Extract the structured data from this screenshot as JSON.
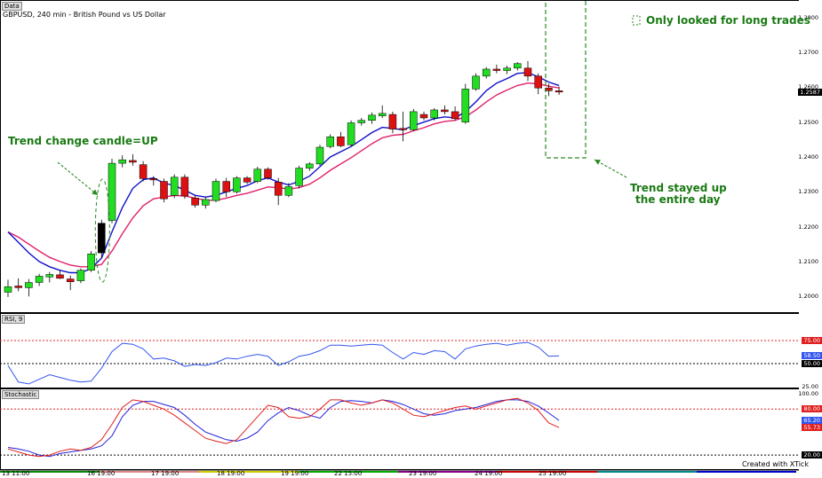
{
  "chart_data": [
    {
      "type": "candlestick",
      "tag": "Data",
      "title": "GBPUSD, 240 min - British Pound vs US Dollar",
      "y_ticks": [
        "1.2800",
        "1.2700",
        "1.2600",
        "1.2500",
        "1.2400",
        "1.2300",
        "1.2200",
        "1.2100",
        "1.2000"
      ],
      "ylim": [
        1.1965,
        1.283
      ],
      "current_price": "1.2587",
      "ohlc": [
        [
          1.2012,
          1.2048,
          1.1998,
          1.2028
        ],
        [
          1.203,
          1.2052,
          1.2015,
          1.2025
        ],
        [
          1.2025,
          1.205,
          1.2,
          1.204
        ],
        [
          1.204,
          1.2065,
          1.203,
          1.2058
        ],
        [
          1.2056,
          1.207,
          1.204,
          1.2063
        ],
        [
          1.2062,
          1.2075,
          1.205,
          1.2052
        ],
        [
          1.205,
          1.206,
          1.2018,
          1.2042
        ],
        [
          1.2045,
          1.208,
          1.2038,
          1.2075
        ],
        [
          1.2075,
          1.213,
          1.207,
          1.2122
        ],
        [
          1.221,
          1.222,
          1.211,
          1.2125
        ],
        [
          1.2218,
          1.2395,
          1.221,
          1.2382
        ],
        [
          1.2382,
          1.2405,
          1.237,
          1.2392
        ],
        [
          1.239,
          1.2408,
          1.2375,
          1.2385
        ],
        [
          1.2378,
          1.2388,
          1.233,
          1.2338
        ],
        [
          1.2338,
          1.2345,
          1.2318,
          1.2335
        ],
        [
          1.233,
          1.2338,
          1.227,
          1.228
        ],
        [
          1.229,
          1.235,
          1.2282,
          1.2342
        ],
        [
          1.2342,
          1.235,
          1.228,
          1.2288
        ],
        [
          1.2282,
          1.229,
          1.2255,
          1.2262
        ],
        [
          1.2262,
          1.2285,
          1.2252,
          1.2278
        ],
        [
          1.2275,
          1.2338,
          1.227,
          1.233
        ],
        [
          1.233,
          1.234,
          1.2285,
          1.23
        ],
        [
          1.23,
          1.2345,
          1.2295,
          1.234
        ],
        [
          1.234,
          1.2345,
          1.2322,
          1.2328
        ],
        [
          1.233,
          1.2372,
          1.2325,
          1.2365
        ],
        [
          1.2365,
          1.237,
          1.2335,
          1.234
        ],
        [
          1.2328,
          1.234,
          1.2262,
          1.229
        ],
        [
          1.229,
          1.2325,
          1.2285,
          1.2315
        ],
        [
          1.2318,
          1.2375,
          1.231,
          1.2368
        ],
        [
          1.2368,
          1.2385,
          1.236,
          1.238
        ],
        [
          1.238,
          1.2435,
          1.2375,
          1.2428
        ],
        [
          1.243,
          1.2465,
          1.2425,
          1.2458
        ],
        [
          1.2458,
          1.2472,
          1.2428,
          1.2432
        ],
        [
          1.2435,
          1.2505,
          1.243,
          1.2498
        ],
        [
          1.2498,
          1.2512,
          1.249,
          1.2505
        ],
        [
          1.2505,
          1.2528,
          1.2495,
          1.252
        ],
        [
          1.2518,
          1.2548,
          1.2512,
          1.2525
        ],
        [
          1.2522,
          1.253,
          1.2468,
          1.248
        ],
        [
          1.2482,
          1.253,
          1.2445,
          1.2478
        ],
        [
          1.2478,
          1.2538,
          1.2475,
          1.253
        ],
        [
          1.2522,
          1.253,
          1.2505,
          1.2512
        ],
        [
          1.2512,
          1.254,
          1.2505,
          1.2535
        ],
        [
          1.2535,
          1.2548,
          1.2522,
          1.253
        ],
        [
          1.253,
          1.2545,
          1.2505,
          1.251
        ],
        [
          1.25,
          1.261,
          1.2495,
          1.2595
        ],
        [
          1.2595,
          1.264,
          1.259,
          1.2632
        ],
        [
          1.2632,
          1.2658,
          1.2625,
          1.2652
        ],
        [
          1.2652,
          1.2665,
          1.264,
          1.2648
        ],
        [
          1.2648,
          1.2662,
          1.2638,
          1.2655
        ],
        [
          1.2655,
          1.2672,
          1.2648,
          1.2668
        ],
        [
          1.2655,
          1.2675,
          1.2618,
          1.2632
        ],
        [
          1.2632,
          1.264,
          1.258,
          1.2598
        ],
        [
          1.2598,
          1.261,
          1.2575,
          1.259
        ],
        [
          1.259,
          1.2602,
          1.2578,
          1.2587
        ]
      ],
      "ma_blue": [
        1.2185,
        1.2155,
        1.2125,
        1.21,
        1.2085,
        1.2075,
        1.2068,
        1.2068,
        1.208,
        1.211,
        1.2185,
        1.2255,
        1.231,
        1.2335,
        1.234,
        1.2325,
        1.2318,
        1.2305,
        1.229,
        1.2285,
        1.229,
        1.23,
        1.231,
        1.2318,
        1.2332,
        1.234,
        1.2328,
        1.232,
        1.233,
        1.2345,
        1.2372,
        1.24,
        1.2415,
        1.243,
        1.245,
        1.247,
        1.2485,
        1.2482,
        1.2478,
        1.249,
        1.25,
        1.251,
        1.2515,
        1.2512,
        1.253,
        1.2558,
        1.259,
        1.2612,
        1.2625,
        1.264,
        1.2642,
        1.263,
        1.2615,
        1.2605
      ],
      "ma_red": [
        1.2185,
        1.217,
        1.215,
        1.213,
        1.2112,
        1.21,
        1.209,
        1.2085,
        1.2085,
        1.2092,
        1.213,
        1.218,
        1.2225,
        1.226,
        1.228,
        1.2285,
        1.229,
        1.2288,
        1.2282,
        1.2276,
        1.2276,
        1.2282,
        1.229,
        1.2296,
        1.2305,
        1.2314,
        1.2312,
        1.2308,
        1.2312,
        1.2322,
        1.234,
        1.2362,
        1.238,
        1.2398,
        1.2418,
        1.2438,
        1.2455,
        1.2462,
        1.2465,
        1.2475,
        1.2484,
        1.2495,
        1.2502,
        1.2505,
        1.2515,
        1.2535,
        1.2558,
        1.2578,
        1.2592,
        1.2605,
        1.2612,
        1.261,
        1.2603,
        1.2598
      ]
    },
    {
      "type": "line",
      "tag": "RSI, 9",
      "y_ticks": [
        "75.00",
        "58.50",
        "50.00",
        "25.00"
      ],
      "levels": [
        75,
        50
      ],
      "current_value": "58.50",
      "ylim": [
        25,
        100
      ],
      "values": [
        48,
        30,
        28,
        33,
        38,
        35,
        32,
        30,
        31,
        45,
        63,
        72,
        71,
        66,
        55,
        56,
        53,
        47,
        49,
        48,
        51,
        56,
        55,
        58,
        60,
        58,
        48,
        52,
        58,
        60,
        64,
        70,
        70,
        69,
        70,
        71,
        70,
        62,
        55,
        62,
        60,
        64,
        63,
        55,
        66,
        69,
        71,
        72,
        70,
        72,
        73,
        68,
        58,
        58.5
      ]
    },
    {
      "type": "line",
      "tag": "Stochastic",
      "y_ticks": [
        "100.00",
        "80.00",
        "65.20",
        "55.73",
        "20.00"
      ],
      "levels": [
        80,
        20
      ],
      "current_values": [
        "65.20",
        "55.73"
      ],
      "ylim": [
        12,
        100
      ],
      "series": [
        {
          "color": "#2222dd",
          "values": [
            30,
            28,
            25,
            20,
            18,
            22,
            24,
            26,
            28,
            32,
            45,
            70,
            85,
            90,
            90,
            86,
            82,
            72,
            60,
            50,
            45,
            40,
            38,
            42,
            50,
            65,
            75,
            82,
            78,
            72,
            68,
            82,
            90,
            91,
            90,
            88,
            92,
            90,
            86,
            80,
            74,
            72,
            74,
            78,
            80,
            82,
            86,
            90,
            92,
            92,
            90,
            84,
            75,
            65.2
          ]
        },
        {
          "color": "#e02020",
          "values": [
            28,
            24,
            20,
            18,
            20,
            25,
            28,
            26,
            30,
            40,
            60,
            82,
            92,
            90,
            85,
            80,
            72,
            62,
            52,
            42,
            38,
            35,
            40,
            55,
            70,
            85,
            82,
            70,
            68,
            70,
            80,
            92,
            92,
            88,
            85,
            88,
            92,
            88,
            80,
            72,
            70,
            74,
            78,
            82,
            84,
            80,
            84,
            88,
            92,
            94,
            88,
            78,
            62,
            55.73
          ]
        }
      ]
    }
  ],
  "x_labels": [
    "13 11:00",
    "16 19:00",
    "17 19:00",
    "18 19:00",
    "19 19:00",
    "22 15:00",
    "23 19:00",
    "24 19:00",
    "25 19:00"
  ],
  "annotations": {
    "trend_change": "Trend change candle=UP",
    "long_trades": "Only looked for long trades",
    "trend_stayed_1": "Trend stayed up",
    "trend_stayed_2": "the entire day"
  },
  "footer": "Created with XTick",
  "colors": {
    "bull": "#22dd22",
    "bear": "#dd1111",
    "ma_blue": "#1010cc",
    "ma_red": "#e0206a",
    "annotation": "#1a7a14"
  }
}
